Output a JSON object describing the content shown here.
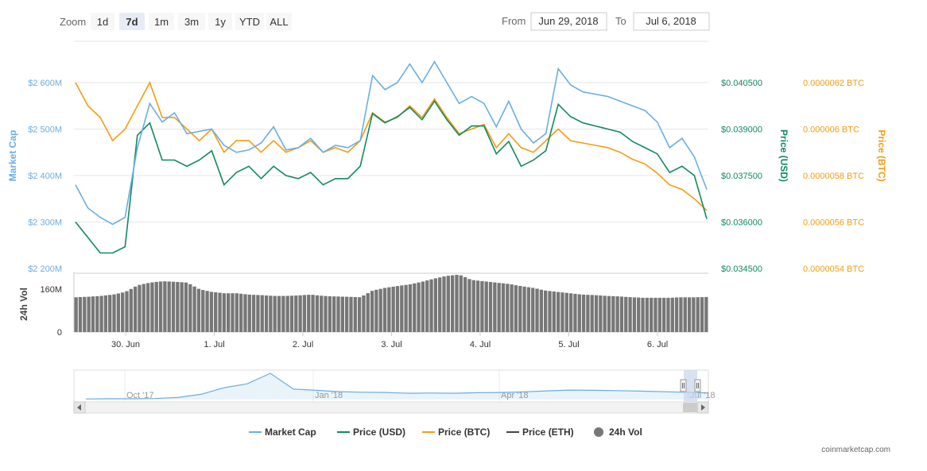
{
  "zoom": {
    "label": "Zoom",
    "buttons": [
      {
        "label": "1d",
        "active": false
      },
      {
        "label": "7d",
        "active": true
      },
      {
        "label": "1m",
        "active": false
      },
      {
        "label": "3m",
        "active": false
      },
      {
        "label": "1y",
        "active": false
      },
      {
        "label": "YTD",
        "active": false
      },
      {
        "label": "ALL",
        "active": false
      }
    ]
  },
  "range": {
    "from_label": "From",
    "from_value": "Jun 29, 2018",
    "to_label": "To",
    "to_value": "Jul 6, 2018"
  },
  "colors": {
    "market_cap": "#6aaee0",
    "price_usd": "#0f8a5f",
    "price_btc": "#f39c12",
    "price_eth": "#444444",
    "volume": "#777777"
  },
  "chart_data": {
    "type": "line",
    "x_tick_labels": [
      "30. Jun",
      "1. Jul",
      "2. Jul",
      "3. Jul",
      "4. Jul",
      "5. Jul",
      "6. Jul"
    ],
    "x_range": [
      "Jun 29, 2018",
      "Jul 6, 2018"
    ],
    "axes": {
      "market_cap": {
        "label": "Market Cap",
        "ticks": [
          "$2 200M",
          "$2 300M",
          "$2 400M",
          "$2 500M",
          "$2 600M"
        ],
        "range": [
          2200,
          2600
        ]
      },
      "price_usd": {
        "label": "Price (USD)",
        "ticks": [
          "$0.034500",
          "$0.036000",
          "$0.037500",
          "$0.039000",
          "$0.040500"
        ],
        "range": [
          0.0345,
          0.0405
        ]
      },
      "price_btc": {
        "label": "Price (BTC)",
        "ticks": [
          "0.0000054 BTC",
          "0.0000056 BTC",
          "0.0000058 BTC",
          "0.000006 BTC",
          "0.0000062 BTC"
        ],
        "range": [
          5.4e-06,
          6.2e-06
        ]
      },
      "volume": {
        "label": "24h Vol",
        "ticks": [
          "0",
          "160M"
        ],
        "range": [
          0,
          220
        ]
      }
    },
    "series": [
      {
        "name": "Market Cap",
        "unit": "M USD",
        "values": [
          2380,
          2330,
          2310,
          2295,
          2310,
          2460,
          2555,
          2515,
          2535,
          2490,
          2495,
          2500,
          2465,
          2450,
          2455,
          2470,
          2505,
          2455,
          2460,
          2480,
          2450,
          2465,
          2460,
          2475,
          2615,
          2585,
          2600,
          2640,
          2600,
          2645,
          2600,
          2555,
          2570,
          2555,
          2505,
          2560,
          2500,
          2470,
          2490,
          2630,
          2595,
          2580,
          2575,
          2570,
          2560,
          2550,
          2540,
          2515,
          2460,
          2480,
          2440,
          2370
        ]
      },
      {
        "name": "Price (USD)",
        "unit": "USD",
        "values": [
          0.036,
          0.0355,
          0.035,
          0.035,
          0.0352,
          0.0388,
          0.0392,
          0.038,
          0.038,
          0.0378,
          0.038,
          0.0383,
          0.0372,
          0.0376,
          0.0378,
          0.0374,
          0.0378,
          0.0375,
          0.0374,
          0.0376,
          0.0372,
          0.0374,
          0.0374,
          0.0378,
          0.0395,
          0.0392,
          0.0394,
          0.0397,
          0.0393,
          0.0399,
          0.0393,
          0.0388,
          0.0391,
          0.0391,
          0.0382,
          0.0386,
          0.0378,
          0.038,
          0.0383,
          0.0398,
          0.0394,
          0.0392,
          0.0391,
          0.039,
          0.0389,
          0.0386,
          0.0384,
          0.0382,
          0.0376,
          0.0378,
          0.0375,
          0.0361
        ]
      },
      {
        "name": "Price (BTC)",
        "unit": "BTC",
        "values": [
          6.2e-06,
          6.1e-06,
          6.05e-06,
          5.95e-06,
          6e-06,
          6.1e-06,
          6.2e-06,
          6.05e-06,
          6.05e-06,
          6e-06,
          5.95e-06,
          6e-06,
          5.9e-06,
          5.95e-06,
          5.95e-06,
          5.9e-06,
          5.95e-06,
          5.9e-06,
          5.92e-06,
          5.95e-06,
          5.9e-06,
          5.92e-06,
          5.9e-06,
          5.95e-06,
          6.07e-06,
          6.03e-06,
          6.05e-06,
          6.1e-06,
          6.05e-06,
          6.13e-06,
          6.05e-06,
          5.98e-06,
          6e-06,
          6.02e-06,
          5.92e-06,
          5.98e-06,
          5.92e-06,
          5.9e-06,
          5.95e-06,
          6e-06,
          5.95e-06,
          5.94e-06,
          5.93e-06,
          5.92e-06,
          5.9e-06,
          5.87e-06,
          5.85e-06,
          5.81e-06,
          5.76e-06,
          5.74e-06,
          5.7e-06,
          5.65e-06
        ]
      },
      {
        "name": "24h Vol",
        "unit": "M USD",
        "values": [
          130,
          132,
          135,
          140,
          150,
          175,
          185,
          190,
          188,
          185,
          160,
          150,
          145,
          145,
          140,
          138,
          135,
          135,
          137,
          140,
          135,
          133,
          132,
          130,
          155,
          165,
          172,
          178,
          188,
          200,
          210,
          215,
          195,
          190,
          185,
          180,
          172,
          165,
          155,
          150,
          145,
          140,
          138,
          135,
          133,
          130,
          128,
          128,
          128,
          130,
          130,
          131
        ]
      }
    ],
    "legend": {
      "placement": "bottom-center",
      "items": [
        "Market Cap",
        "Price (USD)",
        "Price (BTC)",
        "Price (ETH)",
        "24h Vol"
      ]
    },
    "navigator": {
      "tick_labels": [
        "Oct '17",
        "Jan '18",
        "Apr '18",
        "Jul '18"
      ],
      "values": [
        2,
        3,
        3,
        4,
        8,
        20,
        45,
        60,
        100,
        40,
        35,
        30,
        28,
        27,
        24,
        25,
        24,
        26,
        27,
        29,
        33,
        36,
        35,
        34,
        32,
        30,
        28,
        25
      ]
    },
    "grid": true
  },
  "watermark": "coinmarketcap.com"
}
